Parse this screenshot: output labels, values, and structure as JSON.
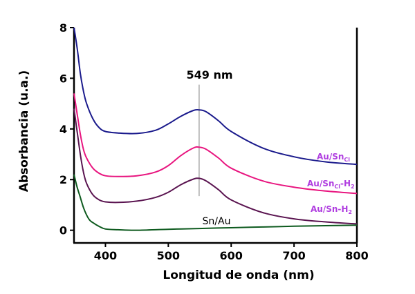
{
  "chart_data": {
    "type": "line",
    "title": "",
    "xlabel": "Longitud de onda (nm)",
    "ylabel": "Absorbancia (u.a.)",
    "xlim": [
      350,
      800
    ],
    "ylim": [
      -0.5,
      8
    ],
    "xticks": [
      "400",
      "500",
      "600",
      "700",
      "800"
    ],
    "yticks": [
      "0",
      "2",
      "4",
      "6",
      "8"
    ],
    "grid": false,
    "legend": "none",
    "annotations": [
      {
        "text": "549 nm",
        "x": 549
      },
      {
        "text": "Sn/Au"
      }
    ],
    "series": [
      {
        "name": "Au/SnCl",
        "label_main": "Au/Sn",
        "label_sub": "Cl",
        "label_suffix": "",
        "color": "#1a1a8c",
        "x": [
          350,
          355,
          360,
          365,
          370,
          380,
          390,
          400,
          420,
          450,
          480,
          500,
          520,
          540,
          549,
          560,
          580,
          600,
          650,
          700,
          750,
          800
        ],
        "y": [
          8.0,
          7.2,
          6.2,
          5.5,
          5.0,
          4.4,
          4.05,
          3.9,
          3.84,
          3.82,
          3.95,
          4.2,
          4.5,
          4.73,
          4.75,
          4.68,
          4.32,
          3.9,
          3.25,
          2.9,
          2.7,
          2.6
        ]
      },
      {
        "name": "Au/SnCl-H2",
        "label_main": "Au/Sn",
        "label_sub": "Cl",
        "label_suffix": "-H",
        "label_suffix_sub": "2",
        "color": "#e8157f",
        "x": [
          350,
          355,
          360,
          365,
          370,
          380,
          390,
          400,
          420,
          450,
          480,
          500,
          520,
          540,
          549,
          560,
          580,
          600,
          650,
          700,
          750,
          800
        ],
        "y": [
          5.4,
          4.6,
          3.8,
          3.2,
          2.85,
          2.45,
          2.25,
          2.15,
          2.12,
          2.15,
          2.3,
          2.55,
          2.95,
          3.25,
          3.28,
          3.2,
          2.85,
          2.45,
          1.95,
          1.7,
          1.55,
          1.45
        ]
      },
      {
        "name": "Au/Sn-H2",
        "label_main": "Au/Sn-H",
        "label_sub": "2",
        "label_suffix": "",
        "color": "#5a1450",
        "x": [
          350,
          355,
          360,
          365,
          370,
          380,
          390,
          400,
          420,
          450,
          480,
          500,
          520,
          540,
          549,
          560,
          580,
          600,
          650,
          700,
          750,
          800
        ],
        "y": [
          4.8,
          3.9,
          3.0,
          2.3,
          1.85,
          1.4,
          1.2,
          1.12,
          1.1,
          1.15,
          1.3,
          1.5,
          1.8,
          2.02,
          2.05,
          1.95,
          1.6,
          1.2,
          0.7,
          0.45,
          0.33,
          0.25
        ]
      },
      {
        "name": "Sn/Au",
        "color": "#0d5a1e",
        "x": [
          350,
          355,
          360,
          365,
          370,
          375,
          380,
          390,
          400,
          420,
          450,
          500,
          549,
          600,
          650,
          700,
          750,
          800
        ],
        "y": [
          2.2,
          1.7,
          1.3,
          0.9,
          0.6,
          0.4,
          0.3,
          0.15,
          0.05,
          0.02,
          0.0,
          0.04,
          0.07,
          0.1,
          0.13,
          0.16,
          0.18,
          0.2
        ]
      }
    ]
  }
}
